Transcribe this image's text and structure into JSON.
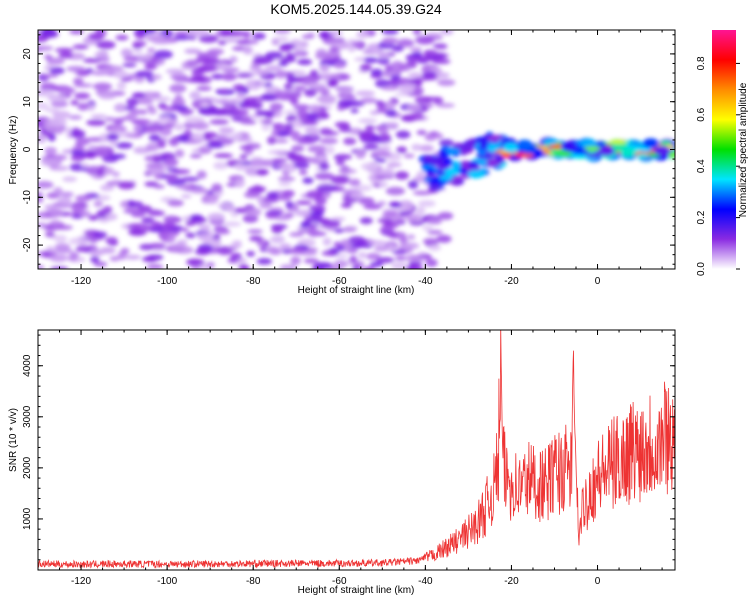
{
  "title": "KOM5.2025.144.05.39.G24",
  "chart_data": [
    {
      "type": "heatmap",
      "xlabel": "Height of straight line (km)",
      "ylabel": "Frequency (Hz)",
      "xlim": [
        -130,
        18
      ],
      "ylim": [
        -25,
        25
      ],
      "xticks": [
        -120,
        -100,
        -80,
        -60,
        -40,
        -20,
        0
      ],
      "xtick_labels": [
        "-120",
        "-100",
        "-80",
        "-60",
        "-40",
        "-20",
        "0"
      ],
      "yticks": [
        -20,
        -10,
        0,
        10,
        20
      ],
      "ytick_labels": [
        "-20",
        "-10",
        "0",
        "10",
        "20"
      ],
      "grid": false,
      "colorbar": {
        "label": "Normalized spectral amplitude",
        "range": [
          0,
          0.93
        ],
        "ticks": [
          0.0,
          0.2,
          0.4,
          0.6,
          0.8
        ],
        "tick_labels": [
          "0.0",
          "0.2",
          "0.4",
          "0.6",
          "0.8"
        ],
        "colors": [
          "#ffffff",
          "#8a2be2",
          "#0000ff",
          "#00e5ff",
          "#00e000",
          "#ffff00",
          "#ff8c00",
          "#ff0000",
          "#ff1493"
        ]
      },
      "features": [
        {
          "x_range": [
            -130,
            -40
          ],
          "y_range": [
            -25,
            25
          ],
          "amplitude": 0.07,
          "description_level": "noise"
        },
        {
          "x_range": [
            -40,
            -22
          ],
          "y_center": -5,
          "amplitude": 0.25
        },
        {
          "x_range": [
            -22,
            18
          ],
          "y_center": 0,
          "amplitude": 0.85
        }
      ]
    },
    {
      "type": "line",
      "xlabel": "Height of straight line (km)",
      "ylabel": "SNR (10 * v/v)",
      "xlim": [
        -130,
        18
      ],
      "ylim": [
        0,
        4700
      ],
      "xticks": [
        -120,
        -100,
        -80,
        -60,
        -40,
        -20,
        0
      ],
      "xtick_labels": [
        "-120",
        "-100",
        "-80",
        "-60",
        "-40",
        "-20",
        "0"
      ],
      "yticks": [
        1000,
        2000,
        3000,
        4000
      ],
      "ytick_labels": [
        "1000",
        "2000",
        "3000",
        "4000"
      ],
      "grid": false,
      "series": [
        {
          "color": "#ee3333",
          "x": [
            -130,
            -120,
            -110,
            -100,
            -90,
            -80,
            -70,
            -60,
            -50,
            -42,
            -38,
            -35,
            -32,
            -30,
            -28,
            -26,
            -24,
            -23,
            -22.5,
            -22,
            -21,
            -20,
            -18,
            -16,
            -14,
            -12,
            -10,
            -8,
            -6,
            -5.5,
            -5,
            -4.5,
            -4,
            -3.5,
            -2,
            0,
            2,
            4,
            6,
            8,
            10,
            12,
            14,
            16,
            18
          ],
          "y": [
            120,
            110,
            120,
            115,
            120,
            125,
            130,
            130,
            140,
            180,
            300,
            450,
            600,
            750,
            900,
            1200,
            1600,
            2200,
            4700,
            2000,
            1800,
            1700,
            1600,
            1800,
            1700,
            1650,
            1900,
            1950,
            2000,
            3550,
            2000,
            900,
            700,
            1200,
            1500,
            1800,
            1950,
            2100,
            2200,
            2350,
            2400,
            2500,
            2450,
            2700,
            2600
          ]
        }
      ]
    }
  ]
}
